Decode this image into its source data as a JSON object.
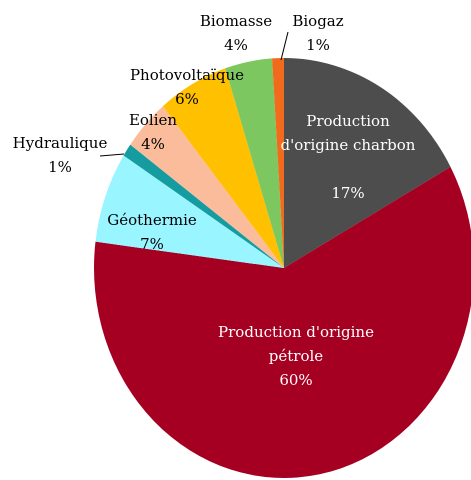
{
  "chart_data": {
    "type": "pie",
    "categories": [
      "Production d'origine charbon",
      "Production d'origine pétrole",
      "Géothermie",
      "Hydraulique",
      "Eolien",
      "Photovoltaïque",
      "Biomasse",
      "Biogaz"
    ],
    "values": [
      17,
      60,
      7,
      1,
      4,
      6,
      4,
      1
    ],
    "value_labels": [
      "17%",
      "60%",
      "7%",
      "1%",
      "4%",
      "6%",
      "4%",
      "1%"
    ],
    "colors": [
      "#4d4d4d",
      "#a50021",
      "#99f5ff",
      "#149ca0",
      "#fbbc9c",
      "#ffc000",
      "#7dc760",
      "#f26b1d"
    ]
  }
}
